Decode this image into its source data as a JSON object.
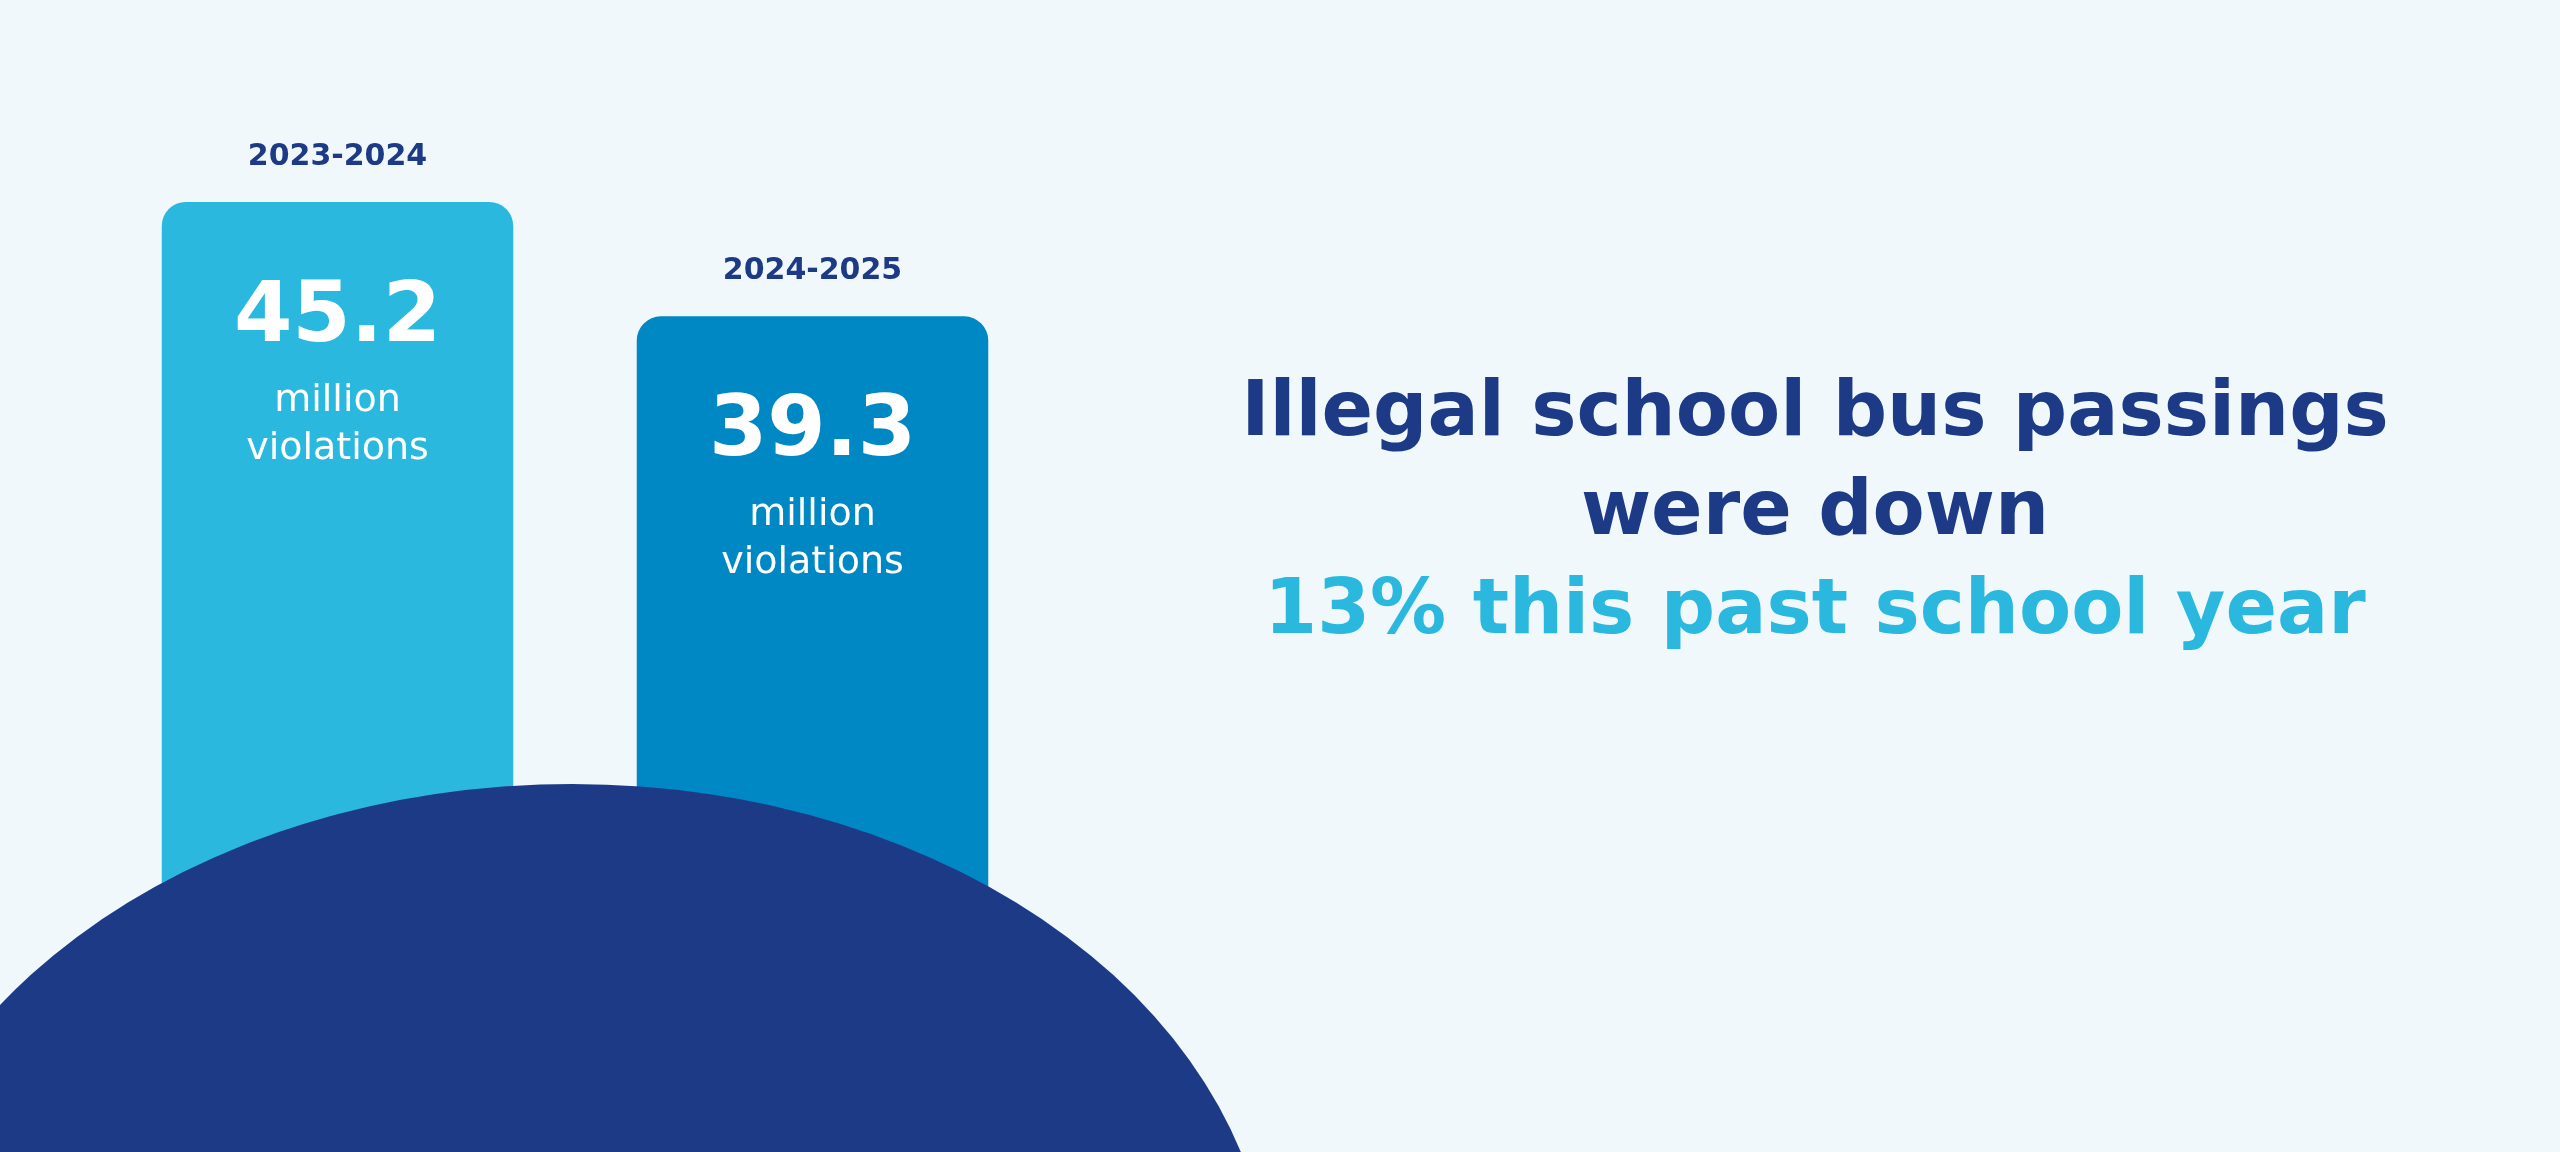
{
  "chart_data": {
    "type": "bar",
    "title": "Illegal school bus passings were down",
    "subtitle": "13% this past school year",
    "categories": [
      "2023-2024",
      "2024-2025"
    ],
    "values": [
      45.2,
      39.3
    ],
    "colors": [
      "#2bb8de",
      "#0088c4"
    ],
    "value_labels": [
      "45.2 million violations",
      "39.3 million violations"
    ]
  }
}
